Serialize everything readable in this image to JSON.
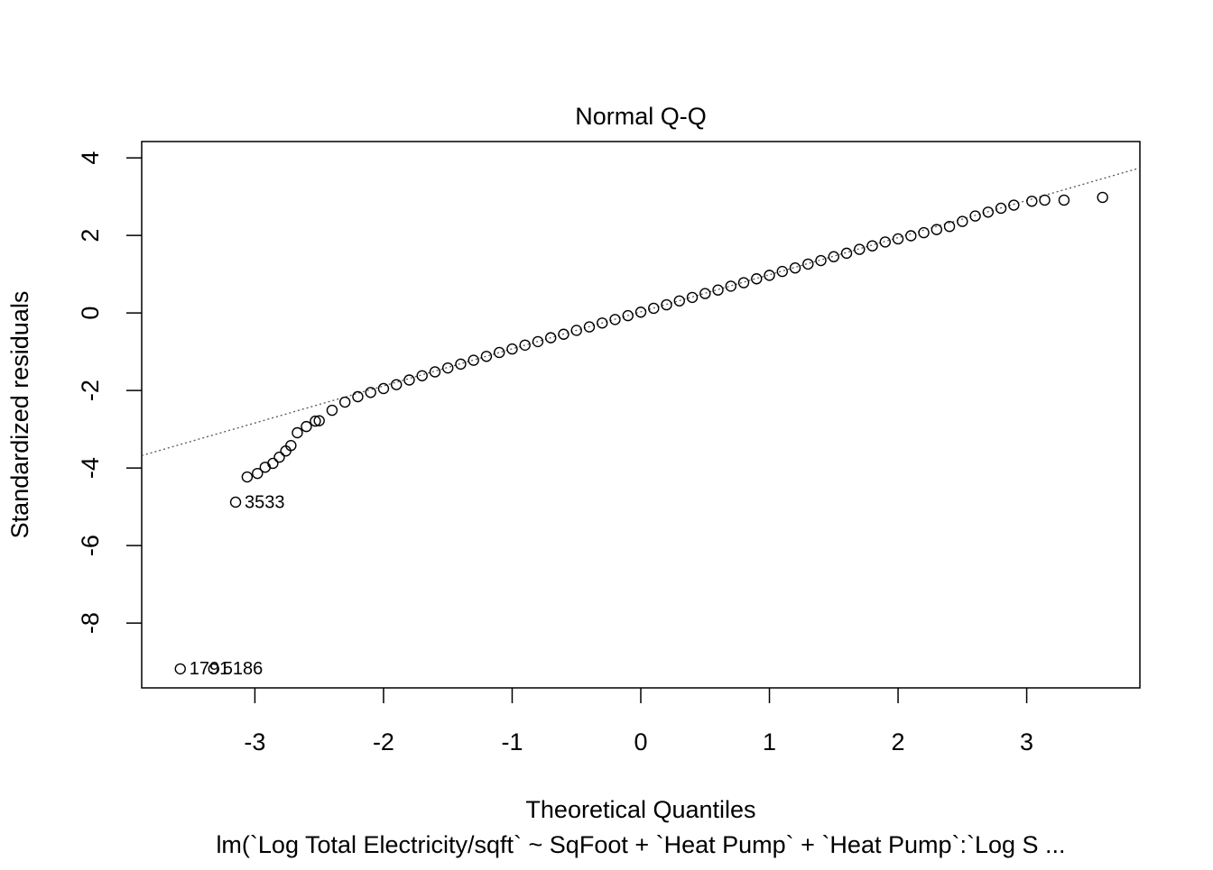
{
  "chart_data": {
    "type": "scatter",
    "title": "Normal Q-Q",
    "xlabel": "Theoretical Quantiles",
    "ylabel": "Standardized residuals",
    "subtitle": "lm(`Log Total Electricity/sqft` ~ SqFoot + `Heat Pump` + `Heat Pump`:`Log S ...",
    "xlim": [
      -3.88,
      3.88
    ],
    "ylim": [
      -9.67,
      4.42
    ],
    "xticks": [
      -3,
      -2,
      -1,
      0,
      1,
      2,
      3
    ],
    "yticks": [
      4,
      2,
      0,
      -2,
      -4,
      -6,
      -8
    ],
    "color": "#000000",
    "x": [
      -3.58,
      -3.32,
      -3.15,
      -3.06,
      -2.98,
      -2.92,
      -2.86,
      -2.81,
      -2.76,
      -2.72,
      -2.67,
      -2.6,
      -2.53,
      -2.5,
      -2.4,
      -2.3,
      -2.2,
      -2.1,
      -2.0,
      -1.9,
      -1.8,
      -1.7,
      -1.6,
      -1.5,
      -1.4,
      -1.3,
      -1.2,
      -1.1,
      -1.0,
      -0.9,
      -0.8,
      -0.7,
      -0.6,
      -0.5,
      -0.4,
      -0.3,
      -0.2,
      -0.1,
      0,
      0.1,
      0.2,
      0.3,
      0.4,
      0.5,
      0.6,
      0.7,
      0.8,
      0.9,
      1.0,
      1.1,
      1.2,
      1.3,
      1.4,
      1.5,
      1.6,
      1.7,
      1.8,
      1.9,
      2.0,
      2.1,
      2.2,
      2.3,
      2.4,
      2.5,
      2.6,
      2.7,
      2.8,
      2.9,
      3.04,
      3.14,
      3.29,
      3.59
    ],
    "y": [
      -9.18,
      -9.18,
      -4.88,
      -4.23,
      -4.14,
      -3.98,
      -3.88,
      -3.72,
      -3.56,
      -3.42,
      -3.09,
      -2.93,
      -2.79,
      -2.78,
      -2.51,
      -2.3,
      -2.16,
      -2.05,
      -1.95,
      -1.85,
      -1.73,
      -1.62,
      -1.52,
      -1.42,
      -1.32,
      -1.22,
      -1.12,
      -1.02,
      -0.93,
      -0.83,
      -0.74,
      -0.64,
      -0.55,
      -0.45,
      -0.36,
      -0.26,
      -0.17,
      -0.07,
      0.02,
      0.12,
      0.21,
      0.31,
      0.4,
      0.5,
      0.59,
      0.69,
      0.78,
      0.88,
      0.97,
      1.07,
      1.16,
      1.26,
      1.35,
      1.45,
      1.54,
      1.64,
      1.73,
      1.83,
      1.91,
      1.99,
      2.07,
      2.15,
      2.23,
      2.36,
      2.5,
      2.6,
      2.7,
      2.78,
      2.88,
      2.91,
      2.91,
      2.98
    ],
    "labels": [
      "1791",
      "5186",
      "3533"
    ],
    "reference_line": {
      "x": [
        -3.88,
        3.88
      ],
      "y": [
        -3.68,
        3.74
      ]
    }
  }
}
